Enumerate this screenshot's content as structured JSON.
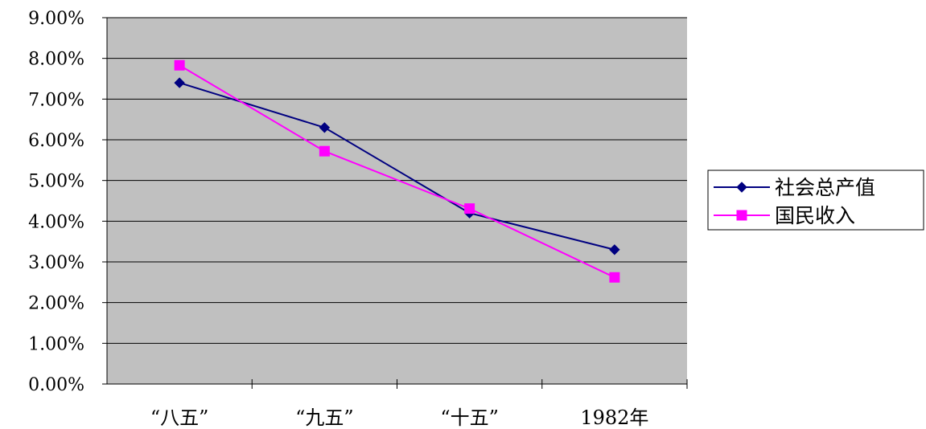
{
  "chart_data": {
    "type": "line",
    "title": "",
    "xlabel": "",
    "ylabel": "",
    "categories": [
      "“八五”",
      "“九五”",
      "“十五”",
      "1982年"
    ],
    "series": [
      {
        "name": "社会总产值",
        "values": [
          7.4,
          6.3,
          4.2,
          3.3
        ],
        "color": "#000080",
        "marker": "diamond"
      },
      {
        "name": "国民收入",
        "values": [
          7.83,
          5.72,
          4.31,
          2.62
        ],
        "color": "#ff00ff",
        "marker": "square"
      }
    ],
    "ylim": [
      0,
      9
    ],
    "y_ticks": [
      "0.00%",
      "1.00%",
      "2.00%",
      "3.00%",
      "4.00%",
      "5.00%",
      "6.00%",
      "7.00%",
      "8.00%",
      "9.00%"
    ],
    "y_tick_values": [
      0,
      1,
      2,
      3,
      4,
      5,
      6,
      7,
      8,
      9
    ],
    "grid": true,
    "legend": "right",
    "plot_background": "#c0c0c0"
  }
}
